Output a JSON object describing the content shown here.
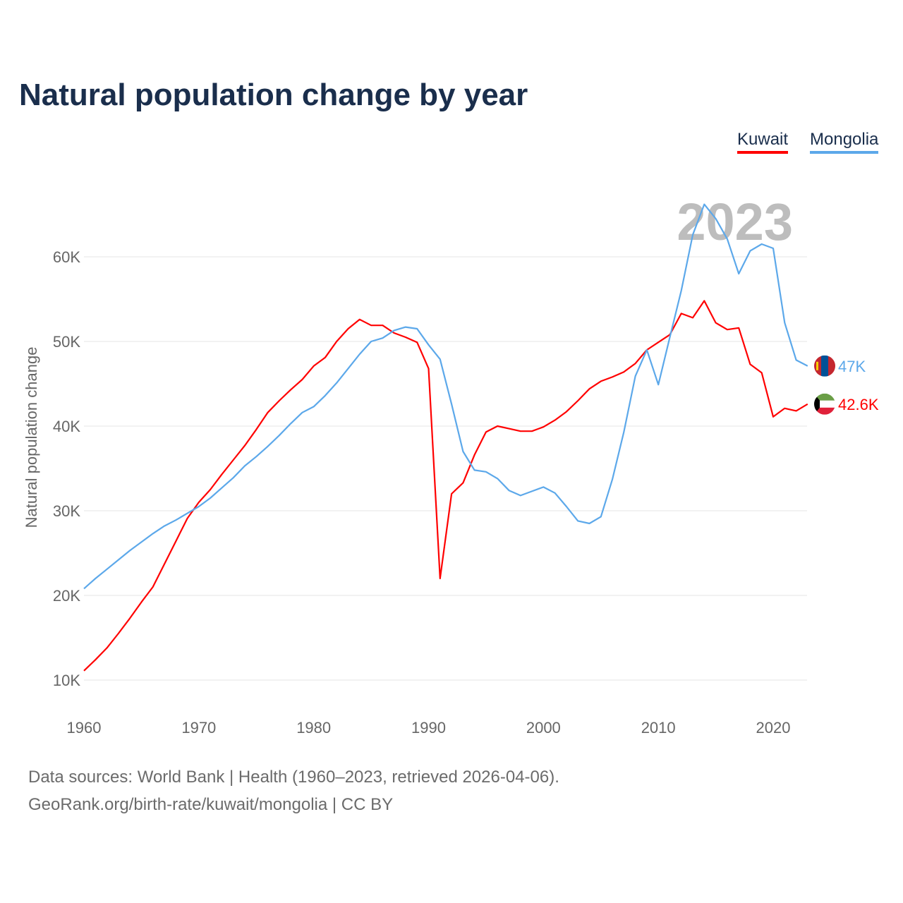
{
  "chart_data": {
    "type": "line",
    "title": "Natural population change by year",
    "xlabel": "",
    "ylabel": "Natural population change",
    "xlim": [
      1960,
      2023
    ],
    "ylim": [
      10000,
      66000
    ],
    "x_ticks": [
      1960,
      1970,
      1980,
      1990,
      2000,
      2010,
      2020
    ],
    "y_ticks": [
      10000,
      20000,
      30000,
      40000,
      50000,
      60000
    ],
    "y_tick_labels": [
      "10K",
      "20K",
      "30K",
      "40K",
      "50K",
      "60K"
    ],
    "grid": true,
    "legend_position": "top-right",
    "year_label": "2023",
    "x": [
      1960,
      1961,
      1962,
      1963,
      1964,
      1965,
      1966,
      1967,
      1968,
      1969,
      1970,
      1971,
      1972,
      1973,
      1974,
      1975,
      1976,
      1977,
      1978,
      1979,
      1980,
      1981,
      1982,
      1983,
      1984,
      1985,
      1986,
      1987,
      1988,
      1989,
      1990,
      1991,
      1992,
      1993,
      1994,
      1995,
      1996,
      1997,
      1998,
      1999,
      2000,
      2001,
      2002,
      2003,
      2004,
      2005,
      2006,
      2007,
      2008,
      2009,
      2010,
      2011,
      2012,
      2013,
      2014,
      2015,
      2016,
      2017,
      2018,
      2019,
      2020,
      2021,
      2022,
      2023
    ],
    "series": [
      {
        "name": "Kuwait",
        "color": "#ff0000",
        "end_label": "42.6K",
        "flag": "kuwait-flag",
        "values": [
          11100,
          12400,
          13800,
          15500,
          17300,
          19200,
          21000,
          23700,
          26400,
          29100,
          31000,
          32500,
          34300,
          36000,
          37700,
          39600,
          41600,
          43000,
          44300,
          45500,
          47100,
          48100,
          50000,
          51500,
          52600,
          51900,
          51900,
          51000,
          50500,
          49900,
          46800,
          22000,
          32000,
          33300,
          36600,
          39300,
          40000,
          39700,
          39400,
          39400,
          39900,
          40700,
          41700,
          43000,
          44400,
          45300,
          45800,
          46400,
          47400,
          49000,
          49900,
          50800,
          53300,
          52800,
          54800,
          52200,
          51400,
          51600,
          47300,
          46300,
          41100,
          42100,
          41800,
          42600
        ]
      },
      {
        "name": "Mongolia",
        "color": "#5ca8ea",
        "end_label": "47K",
        "flag": "mongolia-flag",
        "values": [
          20800,
          22000,
          23100,
          24200,
          25300,
          26300,
          27300,
          28200,
          28900,
          29700,
          30500,
          31500,
          32700,
          33900,
          35300,
          36400,
          37600,
          38900,
          40300,
          41600,
          42300,
          43600,
          45100,
          46800,
          48500,
          50000,
          50400,
          51300,
          51700,
          51500,
          49600,
          47900,
          42600,
          37000,
          34800,
          34600,
          33800,
          32400,
          31800,
          32300,
          32800,
          32100,
          30500,
          28800,
          28500,
          29300,
          33700,
          39300,
          45900,
          49000,
          44900,
          50500,
          56000,
          62600,
          66200,
          64500,
          62100,
          58000,
          60700,
          61500,
          61000,
          52200,
          47800,
          47100
        ]
      }
    ]
  },
  "footer": {
    "line1": "Data sources: World Bank | Health (1960–2023, retrieved 2026-04-06).",
    "line2": "GeoRank.org/birth-rate/kuwait/mongolia | CC BY"
  }
}
